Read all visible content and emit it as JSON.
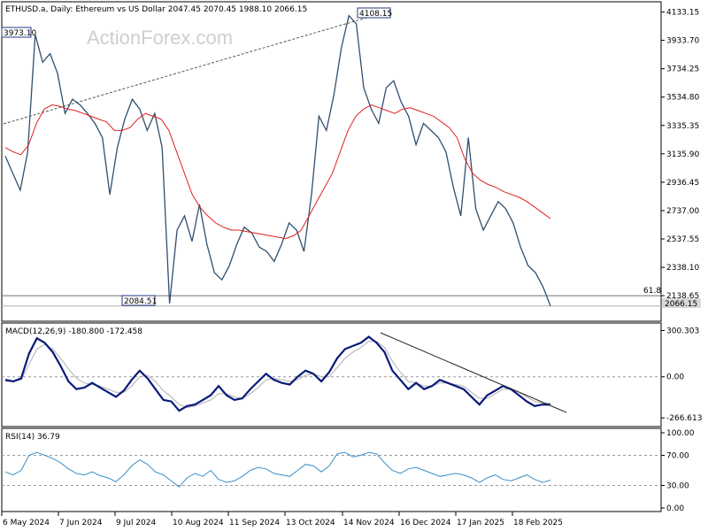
{
  "header": {
    "symbol": "ETHUSD.a",
    "timeframe": "Daily",
    "description": "Ethereum vs US Dollar",
    "ohlc": "2047.45 2070.45 1988.10 2066.15"
  },
  "watermark": "ActionForex.com",
  "colors": {
    "price": "#2f4f6f",
    "ma": "#e02020",
    "macd": "#0a1a7a",
    "signal": "#b0b0b0",
    "rsi": "#3a8fc8",
    "trend": "#555555",
    "grid": "#9a9a9a"
  },
  "chart_data": [
    {
      "type": "line",
      "panel": "price",
      "series": [
        {
          "name": "",
          "values": [
            3120,
            3000,
            2880,
            3150,
            3973,
            3780,
            3840,
            3700,
            3420,
            3520,
            3480,
            3420,
            3350,
            3250,
            2850,
            3180,
            3380,
            3520,
            3450,
            3300,
            3420,
            3180,
            2084,
            2600,
            2700,
            2520,
            2780,
            2500,
            2300,
            2250,
            2350,
            2500,
            2620,
            2580,
            2480,
            2450,
            2380,
            2500,
            2650,
            2600,
            2450,
            2850,
            3400,
            3300,
            3550,
            3880,
            4108,
            4050,
            3600,
            3450,
            3350,
            3600,
            3650,
            3500,
            3400,
            3200,
            3350,
            3300,
            3250,
            3150,
            2900,
            2700,
            3250,
            2750,
            2600,
            2700,
            2800,
            2750,
            2650,
            2480,
            2350,
            2300,
            2200,
            2066
          ]
        },
        {
          "name": "",
          "values": [
            3180,
            3150,
            3130,
            3200,
            3350,
            3450,
            3480,
            3470,
            3450,
            3440,
            3420,
            3400,
            3380,
            3360,
            3300,
            3300,
            3320,
            3380,
            3420,
            3400,
            3380,
            3300,
            3150,
            3000,
            2850,
            2760,
            2700,
            2650,
            2620,
            2600,
            2600,
            2590,
            2580,
            2570,
            2560,
            2550,
            2540,
            2560,
            2600,
            2700,
            2800,
            2900,
            3000,
            3150,
            3300,
            3400,
            3450,
            3480,
            3460,
            3440,
            3420,
            3450,
            3460,
            3440,
            3420,
            3400,
            3360,
            3320,
            3250,
            3100,
            3000,
            2950,
            2920,
            2900,
            2870,
            2850,
            2830,
            2800,
            2760,
            2720,
            2680
          ]
        }
      ],
      "ylim": [
        1990,
        4180
      ],
      "yticks": [
        "4133.15",
        "3933.70",
        "3734.25",
        "3534.80",
        "3335.35",
        "3135.90",
        "2936.45",
        "2737.00",
        "2537.55",
        "2338.10",
        "2138.65"
      ],
      "annotations": [
        "3973.10",
        "4108.15",
        "2084.51",
        "61.8",
        "2066.15"
      ],
      "fib_level": 2138.65,
      "last_price": 2066.15
    },
    {
      "type": "line",
      "panel": "macd",
      "title": "MACD(12,26,9) -180.800 -172.458",
      "series": [
        {
          "name": "",
          "values": [
            -20,
            -30,
            -10,
            150,
            250,
            220,
            160,
            70,
            -30,
            -80,
            -70,
            -40,
            -70,
            -100,
            -130,
            -90,
            -20,
            40,
            -10,
            -80,
            -150,
            -160,
            -220,
            -190,
            -180,
            -150,
            -120,
            -60,
            -120,
            -150,
            -140,
            -80,
            -30,
            20,
            -20,
            -40,
            -50,
            0,
            40,
            20,
            -30,
            30,
            120,
            180,
            200,
            220,
            260,
            220,
            160,
            40,
            -20,
            -80,
            -40,
            -80,
            -60,
            -20,
            -40,
            -60,
            -80,
            -130,
            -180,
            -120,
            -90,
            -60,
            -80,
            -120,
            -160,
            -190,
            -180,
            -181
          ]
        },
        {
          "name": "",
          "values": [
            -30,
            -30,
            -20,
            80,
            180,
            210,
            180,
            120,
            50,
            -10,
            -40,
            -50,
            -60,
            -80,
            -100,
            -100,
            -60,
            0,
            10,
            -30,
            -90,
            -130,
            -180,
            -200,
            -190,
            -170,
            -150,
            -110,
            -110,
            -130,
            -140,
            -110,
            -70,
            -20,
            -10,
            -20,
            -30,
            -20,
            10,
            20,
            0,
            0,
            60,
            120,
            160,
            190,
            230,
            230,
            190,
            100,
            30,
            -30,
            -40,
            -60,
            -60,
            -40,
            -40,
            -50,
            -60,
            -100,
            -140,
            -140,
            -110,
            -80,
            -80,
            -100,
            -130,
            -160,
            -170,
            -172
          ]
        }
      ],
      "ylim": [
        -300,
        320
      ],
      "yticks": [
        "300.303",
        "0.00",
        "-266.613"
      ]
    },
    {
      "type": "line",
      "panel": "rsi",
      "title": "RSI(14) 36.79",
      "series": [
        {
          "name": "",
          "values": [
            48,
            44,
            50,
            70,
            74,
            70,
            66,
            60,
            52,
            46,
            44,
            48,
            43,
            40,
            35,
            44,
            56,
            64,
            58,
            48,
            44,
            36,
            28,
            40,
            46,
            42,
            50,
            38,
            34,
            36,
            42,
            50,
            54,
            52,
            46,
            44,
            42,
            50,
            58,
            56,
            48,
            56,
            72,
            74,
            68,
            70,
            74,
            72,
            60,
            50,
            46,
            52,
            54,
            50,
            46,
            42,
            44,
            46,
            44,
            40,
            34,
            40,
            44,
            38,
            36,
            40,
            44,
            38,
            34,
            37
          ]
        }
      ],
      "ylim": [
        0,
        100
      ],
      "yticks": [
        "100.00",
        "70.00",
        "30.00",
        "0.00"
      ]
    }
  ],
  "x_labels": [
    "6 May 2024",
    "7 Jun 2024",
    "9 Jul 2024",
    "10 Aug 2024",
    "11 Sep 2024",
    "13 Oct 2024",
    "14 Nov 2024",
    "16 Dec 2024",
    "17 Jan 2025",
    "18 Feb 2025"
  ]
}
